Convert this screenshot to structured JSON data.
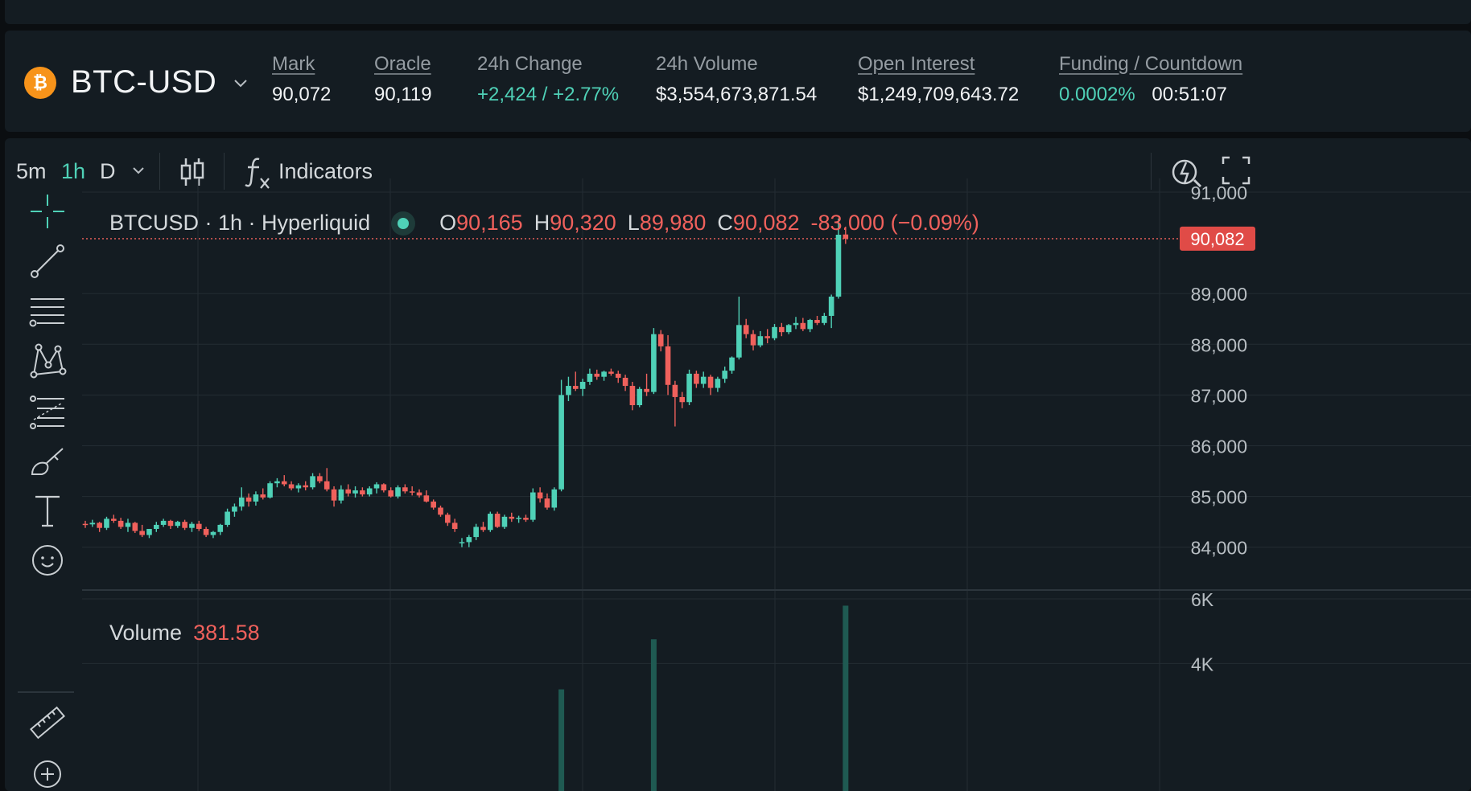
{
  "header": {
    "coin_symbol": "₿",
    "pair": "BTC-USD",
    "stats": [
      {
        "label": "Mark",
        "value": "90,072"
      },
      {
        "label": "Oracle",
        "value": "90,119"
      },
      {
        "label": "24h Change",
        "value": "+2,424 / +2.77%"
      },
      {
        "label": "24h Volume",
        "value": "$3,554,673,871.54"
      },
      {
        "label": "Open Interest",
        "value": "$1,249,709,643.72"
      },
      {
        "label": "Funding / Countdown",
        "value": "0.0002%",
        "value2": "00:51:07"
      }
    ]
  },
  "toolbar": {
    "intervals": [
      "5m",
      "1h",
      "D"
    ],
    "active_interval": "1h",
    "indicators_label": "Indicators"
  },
  "legend": {
    "symbol": "BTCUSD · 1h · Hyperliquid",
    "o_label": "O",
    "o": "90,165",
    "h_label": "H",
    "h": "90,320",
    "l_label": "L",
    "l": "89,980",
    "c_label": "C",
    "c": "90,082",
    "change": "-83.000 (−0.09%)"
  },
  "volume_legend": {
    "label": "Volume",
    "value": "381.58"
  },
  "sidebar_icons": [
    "crosshair-icon",
    "trend-line-icon",
    "horizontal-lines-icon",
    "pattern-icon",
    "fib-icon",
    "brush-icon",
    "text-icon",
    "emoji-icon",
    "ruler-icon",
    "zoom-in-icon"
  ],
  "colors": {
    "up": "#4fd1b7",
    "down": "#f0615c",
    "background": "#141c22",
    "accent": "#4fd1b7"
  },
  "chart_data": {
    "type": "candlestick",
    "interval": "1h",
    "last_price_label": "90,082",
    "last_price": 90082,
    "price_ticks": [
      "91,000",
      "89,000",
      "88,000",
      "87,000",
      "86,000",
      "85,000",
      "84,000"
    ],
    "price_tick_values": [
      91000,
      89000,
      88000,
      87000,
      86000,
      85000,
      84000
    ],
    "volume_ticks": [
      "6K",
      "4K"
    ],
    "volume_tick_values": [
      6000,
      4000
    ],
    "candles": [
      [
        84460,
        84520,
        84380,
        84450
      ],
      [
        84450,
        84540,
        84400,
        84480
      ],
      [
        84480,
        84500,
        84300,
        84380
      ],
      [
        84380,
        84600,
        84340,
        84560
      ],
      [
        84560,
        84640,
        84480,
        84520
      ],
      [
        84520,
        84580,
        84360,
        84400
      ],
      [
        84400,
        84560,
        84300,
        84480
      ],
      [
        84480,
        84500,
        84280,
        84320
      ],
      [
        84320,
        84440,
        84200,
        84240
      ],
      [
        84240,
        84360,
        84180,
        84360
      ],
      [
        84360,
        84500,
        84300,
        84440
      ],
      [
        84440,
        84560,
        84400,
        84520
      ],
      [
        84520,
        84540,
        84360,
        84420
      ],
      [
        84420,
        84520,
        84380,
        84500
      ],
      [
        84500,
        84540,
        84340,
        84380
      ],
      [
        84380,
        84500,
        84300,
        84460
      ],
      [
        84460,
        84520,
        84320,
        84360
      ],
      [
        84360,
        84400,
        84200,
        84240
      ],
      [
        84240,
        84320,
        84180,
        84300
      ],
      [
        84300,
        84460,
        84240,
        84440
      ],
      [
        84440,
        84760,
        84400,
        84700
      ],
      [
        84700,
        84860,
        84600,
        84800
      ],
      [
        84800,
        85180,
        84720,
        84980
      ],
      [
        84980,
        85060,
        84800,
        84900
      ],
      [
        84900,
        85100,
        84820,
        85040
      ],
      [
        85040,
        85160,
        84940,
        84980
      ],
      [
        84980,
        85300,
        84960,
        85260
      ],
      [
        85260,
        85360,
        85180,
        85300
      ],
      [
        85300,
        85420,
        85200,
        85240
      ],
      [
        85240,
        85300,
        85120,
        85160
      ],
      [
        85160,
        85260,
        85080,
        85220
      ],
      [
        85220,
        85300,
        85120,
        85180
      ],
      [
        85180,
        85460,
        85140,
        85400
      ],
      [
        85400,
        85460,
        85260,
        85300
      ],
      [
        85300,
        85560,
        85100,
        85140
      ],
      [
        85140,
        85200,
        84800,
        84920
      ],
      [
        84920,
        85220,
        84860,
        85140
      ],
      [
        85140,
        85240,
        85000,
        85060
      ],
      [
        85060,
        85200,
        84980,
        85120
      ],
      [
        85120,
        85180,
        85000,
        85040
      ],
      [
        85040,
        85200,
        85000,
        85160
      ],
      [
        85160,
        85280,
        85060,
        85240
      ],
      [
        85240,
        85260,
        85080,
        85120
      ],
      [
        85120,
        85180,
        84980,
        85000
      ],
      [
        85000,
        85220,
        84960,
        85180
      ],
      [
        85180,
        85240,
        85060,
        85100
      ],
      [
        85100,
        85200,
        85020,
        85080
      ],
      [
        85080,
        85140,
        84980,
        85020
      ],
      [
        85020,
        85120,
        84880,
        84900
      ],
      [
        84900,
        84940,
        84740,
        84780
      ],
      [
        84780,
        84820,
        84600,
        84640
      ],
      [
        84640,
        84680,
        84420,
        84480
      ],
      [
        84480,
        84560,
        84300,
        84360
      ],
      [
        84080,
        84180,
        84000,
        84100
      ],
      [
        84100,
        84240,
        84000,
        84200
      ],
      [
        84200,
        84460,
        84140,
        84400
      ],
      [
        84400,
        84500,
        84300,
        84340
      ],
      [
        84340,
        84700,
        84300,
        84660
      ],
      [
        84660,
        84700,
        84380,
        84400
      ],
      [
        84400,
        84640,
        84360,
        84600
      ],
      [
        84600,
        84680,
        84500,
        84560
      ],
      [
        84560,
        84620,
        84480,
        84580
      ],
      [
        84580,
        84640,
        84500,
        84540
      ],
      [
        84540,
        85160,
        84500,
        85080
      ],
      [
        85080,
        85180,
        84880,
        84960
      ],
      [
        84960,
        85060,
        84740,
        84780
      ],
      [
        84780,
        85180,
        84720,
        85140
      ],
      [
        85140,
        87300,
        85100,
        87000
      ],
      [
        87000,
        87360,
        86880,
        87180
      ],
      [
        87180,
        87460,
        87080,
        87120
      ],
      [
        87120,
        87320,
        86980,
        87260
      ],
      [
        87260,
        87520,
        87200,
        87420
      ],
      [
        87420,
        87500,
        87300,
        87360
      ],
      [
        87360,
        87480,
        87280,
        87460
      ],
      [
        87460,
        87520,
        87380,
        87420
      ],
      [
        87420,
        87480,
        87240,
        87340
      ],
      [
        87340,
        87400,
        87080,
        87180
      ],
      [
        87180,
        87260,
        86700,
        86800
      ],
      [
        86800,
        87160,
        86760,
        87120
      ],
      [
        87120,
        87420,
        86980,
        87060
      ],
      [
        87060,
        88320,
        87020,
        88200
      ],
      [
        88200,
        88280,
        87860,
        87960
      ],
      [
        87960,
        88180,
        87000,
        87200
      ],
      [
        87200,
        87280,
        86380,
        86960
      ],
      [
        86960,
        87060,
        86740,
        86860
      ],
      [
        86860,
        87500,
        86800,
        87420
      ],
      [
        87420,
        87480,
        87140,
        87220
      ],
      [
        87220,
        87460,
        87140,
        87360
      ],
      [
        87360,
        87400,
        87000,
        87140
      ],
      [
        87140,
        87360,
        87060,
        87320
      ],
      [
        87320,
        87560,
        87240,
        87480
      ],
      [
        87480,
        87760,
        87420,
        87740
      ],
      [
        87740,
        88940,
        87700,
        88380
      ],
      [
        88380,
        88500,
        88120,
        88200
      ],
      [
        88200,
        88280,
        87880,
        87980
      ],
      [
        87980,
        88260,
        87940,
        88160
      ],
      [
        88160,
        88300,
        88020,
        88120
      ],
      [
        88120,
        88400,
        88080,
        88340
      ],
      [
        88340,
        88420,
        88160,
        88240
      ],
      [
        88240,
        88400,
        88200,
        88380
      ],
      [
        88380,
        88540,
        88300,
        88420
      ],
      [
        88420,
        88520,
        88260,
        88300
      ],
      [
        88300,
        88500,
        88240,
        88480
      ],
      [
        88480,
        88560,
        88380,
        88420
      ],
      [
        88420,
        88620,
        88380,
        88560
      ],
      [
        88560,
        88980,
        88320,
        88940
      ],
      [
        88940,
        90480,
        88900,
        90160
      ],
      [
        90165,
        90320,
        89980,
        90082
      ]
    ],
    "volume_visible": [
      {
        "index": 67,
        "value": 3200
      },
      {
        "index": 80,
        "value": 4750
      },
      {
        "index": 107,
        "value": 5790
      }
    ]
  }
}
